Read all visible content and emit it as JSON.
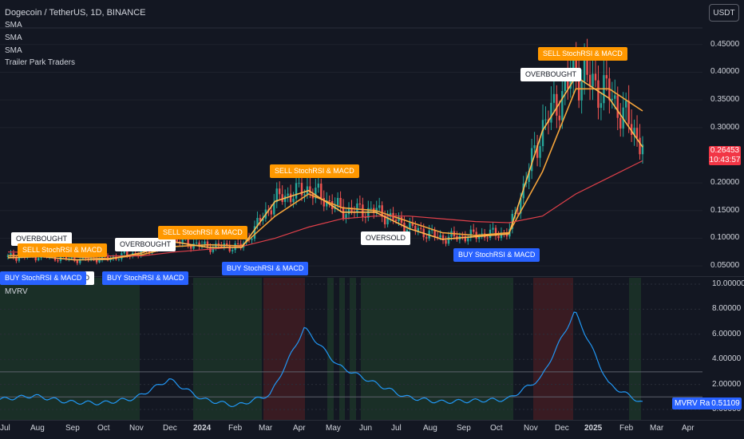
{
  "header": {
    "symbol_title": "Dogecoin / TetherUS, 1D, BINANCE",
    "indicators": [
      "SMA",
      "SMA",
      "SMA",
      "Trailer Park Traders"
    ]
  },
  "currency_button": "USDT",
  "price_axis": {
    "labels": [
      "0.45000",
      "0.40000",
      "0.35000",
      "0.30000",
      "0.20000",
      "0.15000",
      "0.10000",
      "0.05000"
    ],
    "current_price": "0.26453",
    "countdown": "10:43:57"
  },
  "signals": [
    {
      "type": "ob",
      "text": "OVERBOUGHT"
    },
    {
      "type": "sell",
      "text": "SELL StochRSI & MACD"
    },
    {
      "type": "os",
      "text": "OVERSOLD"
    },
    {
      "type": "buy",
      "text": "BUY StochRSI & MACD"
    },
    {
      "type": "ob",
      "text": "OVERBOUGHT"
    },
    {
      "type": "buy",
      "text": "BUY StochRSI & MACD"
    },
    {
      "type": "sell",
      "text": "SELL StochRSI & MACD"
    },
    {
      "type": "buy",
      "text": "BUY StochRSI & MACD"
    },
    {
      "type": "sell",
      "text": "SELL StochRSI & MACD"
    },
    {
      "type": "os",
      "text": "OVERSOLD"
    },
    {
      "type": "buy",
      "text": "BUY StochRSI & MACD"
    },
    {
      "type": "ob",
      "text": "OVERBOUGHT"
    },
    {
      "type": "sell",
      "text": "SELL StochRSI & MACD"
    }
  ],
  "mvrv_panel": {
    "title": "MVRV",
    "axis_labels": [
      "10.00000",
      "8.00000",
      "6.00000",
      "4.00000",
      "2.00000",
      "0.00000"
    ],
    "series_label": "MVRV Ratio",
    "current_value": "0.51109"
  },
  "time_axis": {
    "labels": [
      "Jul",
      "Aug",
      "Sep",
      "Oct",
      "Nov",
      "Dec",
      "2024",
      "Feb",
      "Mar",
      "Apr",
      "May",
      "Jun",
      "Jul",
      "Aug",
      "Sep",
      "Oct",
      "Nov",
      "Dec",
      "2025",
      "Feb",
      "Mar",
      "Apr"
    ]
  },
  "colors": {
    "background": "#131722",
    "sma_orange": "#ff9800",
    "sma_red": "#e0404a",
    "mvrv_line": "#2962ff",
    "green_zone": "#1e3a2a",
    "red_zone": "#4a1e22"
  },
  "chart_data": [
    {
      "type": "line",
      "title": "Dogecoin / TetherUS, 1D, BINANCE",
      "ylabel": "",
      "ylim": [
        0.04,
        0.48
      ],
      "x": [
        "2023-07",
        "2023-08",
        "2023-09",
        "2023-10",
        "2023-11",
        "2023-12",
        "2024-01",
        "2024-02",
        "2024-03",
        "2024-04",
        "2024-05",
        "2024-06",
        "2024-07",
        "2024-08",
        "2024-09",
        "2024-10",
        "2024-11",
        "2024-12",
        "2025-01",
        "2025-02"
      ],
      "series": [
        {
          "name": "",
          "values": [
            0.066,
            0.068,
            0.062,
            0.063,
            0.075,
            0.095,
            0.085,
            0.085,
            0.17,
            0.19,
            0.15,
            0.15,
            0.12,
            0.1,
            0.105,
            0.11,
            0.3,
            0.4,
            0.36,
            0.27
          ]
        },
        {
          "name": "",
          "values": [
            0.068,
            0.07,
            0.066,
            0.063,
            0.07,
            0.085,
            0.088,
            0.086,
            0.14,
            0.18,
            0.155,
            0.15,
            0.13,
            0.11,
            0.105,
            0.11,
            0.22,
            0.37,
            0.37,
            0.33
          ]
        },
        {
          "name": "",
          "values": [
            0.075,
            0.074,
            0.072,
            0.068,
            0.068,
            0.075,
            0.08,
            0.085,
            0.1,
            0.12,
            0.135,
            0.14,
            0.14,
            0.135,
            0.13,
            0.128,
            0.14,
            0.18,
            0.21,
            0.24
          ]
        }
      ]
    },
    {
      "type": "line",
      "title": "MVRV",
      "ylim": [
        0,
        10
      ],
      "x": [
        "2023-07",
        "2023-08",
        "2023-09",
        "2023-10",
        "2023-11",
        "2023-12",
        "2024-01",
        "2024-02",
        "2024-03",
        "2024-04",
        "2024-05",
        "2024-06",
        "2024-07",
        "2024-08",
        "2024-09",
        "2024-10",
        "2024-11",
        "2024-12",
        "2025-01",
        "2025-02"
      ],
      "series": [
        {
          "name": "MVRV Ratio",
          "values": [
            0.8,
            1.1,
            0.6,
            0.5,
            0.9,
            2.4,
            0.8,
            0.3,
            1.2,
            6.5,
            3.5,
            2.2,
            1.0,
            0.6,
            0.7,
            0.8,
            2.5,
            7.8,
            2.0,
            0.51
          ]
        }
      ]
    }
  ]
}
